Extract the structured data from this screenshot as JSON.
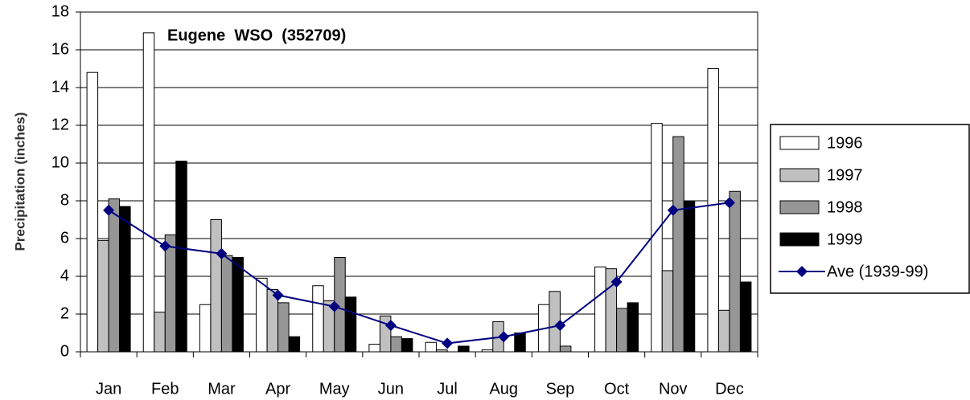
{
  "chart_data": {
    "type": "bar",
    "title": "Eugene  WSO  (352709)",
    "y_label": "Precipitation (inches)",
    "categories": [
      "Jan",
      "Feb",
      "Mar",
      "Apr",
      "May",
      "Jun",
      "Jul",
      "Aug",
      "Sep",
      "Oct",
      "Nov",
      "Dec"
    ],
    "series": [
      {
        "name": "1996",
        "color": "#ffffff",
        "values": [
          14.8,
          16.9,
          2.5,
          3.9,
          3.5,
          0.4,
          0.5,
          0.1,
          2.5,
          4.5,
          12.1,
          15.0
        ]
      },
      {
        "name": "1997",
        "color": "#c0c0c0",
        "values": [
          5.9,
          2.1,
          7.0,
          3.3,
          2.7,
          1.9,
          0.1,
          1.6,
          3.2,
          4.4,
          4.3,
          2.2
        ]
      },
      {
        "name": "1998",
        "color": "#969696",
        "values": [
          8.1,
          6.2,
          5.1,
          2.6,
          5.0,
          0.8,
          0.0,
          0.0,
          0.3,
          2.3,
          11.4,
          8.5
        ]
      },
      {
        "name": "1999",
        "color": "#000000",
        "values": [
          7.7,
          10.1,
          5.0,
          0.8,
          2.9,
          0.7,
          0.3,
          1.0,
          0.0,
          2.6,
          8.0,
          3.7
        ]
      },
      {
        "name": "Ave (1939-99)",
        "color": "#000080",
        "type": "line",
        "values": [
          7.5,
          5.6,
          5.2,
          3.0,
          2.4,
          1.4,
          0.45,
          0.8,
          1.4,
          3.7,
          7.5,
          7.9
        ]
      }
    ],
    "ylim": [
      0,
      18
    ],
    "yticks": [
      0,
      2,
      4,
      6,
      8,
      10,
      12,
      14,
      16,
      18
    ],
    "grid": true,
    "legend": "right"
  }
}
